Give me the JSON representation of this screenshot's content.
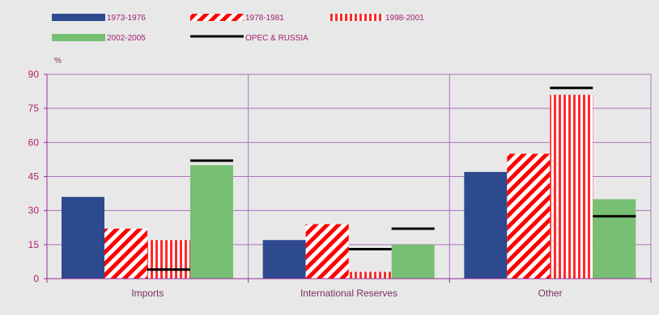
{
  "chart_data": {
    "type": "bar",
    "unit_label": "%",
    "categories": [
      "Imports",
      "International Reserves",
      "Other"
    ],
    "ylim": [
      0,
      90
    ],
    "yticks": [
      0,
      15,
      30,
      45,
      60,
      75,
      90
    ],
    "grid": true,
    "legend_position": "top-left",
    "series": [
      {
        "name": "1973-1976",
        "values": [
          36,
          17,
          47
        ],
        "color": "#2e4a8e",
        "pattern": "solid"
      },
      {
        "name": "1978-1981",
        "values": [
          22,
          24,
          55
        ],
        "color": "#ff0000",
        "pattern": "diagonal-stripes"
      },
      {
        "name": "1998-2001",
        "values": [
          17,
          3,
          81
        ],
        "color": "#ff0000",
        "pattern": "vertical-stripes"
      },
      {
        "name": "2002-2005",
        "values": [
          50,
          15,
          35
        ],
        "color": "#77c073",
        "pattern": "solid"
      }
    ],
    "markers": {
      "name": "OPEC & RUSSIA",
      "color": "#000000",
      "values": [
        4,
        13,
        22,
        52,
        27.5,
        84
      ]
    },
    "colors": {
      "axis": "#9a2a9a",
      "grid": "#b070c0",
      "tick_text": "#b01e6e",
      "label_text": "#7a3060",
      "legend_text": "#a01e6e",
      "background": "#e8e8e8"
    }
  }
}
